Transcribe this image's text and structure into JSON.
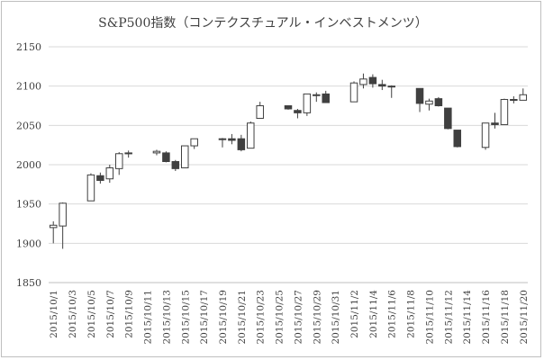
{
  "chart_data": {
    "type": "candlestick",
    "title": "S&P500指数（コンテクスチュアル・インベストメンツ）",
    "ylim": [
      1850,
      2150
    ],
    "yticks": [
      1850,
      1900,
      1950,
      2000,
      2050,
      2100,
      2150
    ],
    "grid": true,
    "legend": "none",
    "colors": {
      "up": "#ffffff",
      "down": "#404040",
      "line": "#404040",
      "grid": "#d9d9d9"
    },
    "categories": [
      "2015/10/1",
      "2015/10/2",
      "2015/10/3",
      "2015/10/4",
      "2015/10/5",
      "2015/10/6",
      "2015/10/7",
      "2015/10/8",
      "2015/10/9",
      "2015/10/10",
      "2015/10/11",
      "2015/10/12",
      "2015/10/13",
      "2015/10/14",
      "2015/10/15",
      "2015/10/16",
      "2015/10/17",
      "2015/10/18",
      "2015/10/19",
      "2015/10/20",
      "2015/10/21",
      "2015/10/22",
      "2015/10/23",
      "2015/10/24",
      "2015/10/25",
      "2015/10/26",
      "2015/10/27",
      "2015/10/28",
      "2015/10/29",
      "2015/10/30",
      "2015/10/31",
      "2015/11/1",
      "2015/11/2",
      "2015/11/3",
      "2015/11/4",
      "2015/11/5",
      "2015/11/6",
      "2015/11/7",
      "2015/11/8",
      "2015/11/9",
      "2015/11/10",
      "2015/11/11",
      "2015/11/12",
      "2015/11/13",
      "2015/11/14",
      "2015/11/15",
      "2015/11/16",
      "2015/11/17",
      "2015/11/18",
      "2015/11/19",
      "2015/11/20"
    ],
    "x_labels": [
      "2015/10/1",
      "2015/10/3",
      "2015/10/5",
      "2015/10/7",
      "2015/10/9",
      "2015/10/11",
      "2015/10/13",
      "2015/10/15",
      "2015/10/17",
      "2015/10/19",
      "2015/10/21",
      "2015/10/23",
      "2015/10/25",
      "2015/10/27",
      "2015/10/29",
      "2015/10/31",
      "2015/11/2",
      "2015/11/4",
      "2015/11/6",
      "2015/11/8",
      "2015/11/10",
      "2015/11/12",
      "2015/11/14",
      "2015/11/16",
      "2015/11/18",
      "2015/11/20"
    ],
    "ohlc": [
      {
        "date": "2015/10/1",
        "open": 1920,
        "high": 1928,
        "low": 1900,
        "close": 1923
      },
      {
        "date": "2015/10/2",
        "open": 1922,
        "high": 1952,
        "low": 1893,
        "close": 1951
      },
      {
        "date": "2015/10/5",
        "open": 1954,
        "high": 1989,
        "low": 1954,
        "close": 1987
      },
      {
        "date": "2015/10/6",
        "open": 1986,
        "high": 1990,
        "low": 1976,
        "close": 1980
      },
      {
        "date": "2015/10/7",
        "open": 1982,
        "high": 2000,
        "low": 1977,
        "close": 1996
      },
      {
        "date": "2015/10/8",
        "open": 1995,
        "high": 2016,
        "low": 1987,
        "close": 2014
      },
      {
        "date": "2015/10/9",
        "open": 2014,
        "high": 2018,
        "low": 2009,
        "close": 2015
      },
      {
        "date": "2015/10/12",
        "open": 2015,
        "high": 2019,
        "low": 2012,
        "close": 2017
      },
      {
        "date": "2015/10/13",
        "open": 2015,
        "high": 2017,
        "low": 2003,
        "close": 2004
      },
      {
        "date": "2015/10/14",
        "open": 2004,
        "high": 2006,
        "low": 1992,
        "close": 1995
      },
      {
        "date": "2015/10/15",
        "open": 1996,
        "high": 2024,
        "low": 1996,
        "close": 2024
      },
      {
        "date": "2015/10/16",
        "open": 2024,
        "high": 2033,
        "low": 2020,
        "close": 2033
      },
      {
        "date": "2015/10/19",
        "open": 2032,
        "high": 2034,
        "low": 2022,
        "close": 2033
      },
      {
        "date": "2015/10/20",
        "open": 2033,
        "high": 2039,
        "low": 2026,
        "close": 2031
      },
      {
        "date": "2015/10/21",
        "open": 2033,
        "high": 2038,
        "low": 2017,
        "close": 2019
      },
      {
        "date": "2015/10/22",
        "open": 2021,
        "high": 2055,
        "low": 2021,
        "close": 2053
      },
      {
        "date": "2015/10/23",
        "open": 2059,
        "high": 2080,
        "low": 2059,
        "close": 2075
      },
      {
        "date": "2015/10/26",
        "open": 2075,
        "high": 2075,
        "low": 2070,
        "close": 2071
      },
      {
        "date": "2015/10/27",
        "open": 2069,
        "high": 2071,
        "low": 2059,
        "close": 2066
      },
      {
        "date": "2015/10/28",
        "open": 2066,
        "high": 2090,
        "low": 2062,
        "close": 2090
      },
      {
        "date": "2015/10/29",
        "open": 2088,
        "high": 2092,
        "low": 2080,
        "close": 2089
      },
      {
        "date": "2015/10/30",
        "open": 2090,
        "high": 2094,
        "low": 2079,
        "close": 2079
      },
      {
        "date": "2015/11/2",
        "open": 2080,
        "high": 2106,
        "low": 2080,
        "close": 2104
      },
      {
        "date": "2015/11/3",
        "open": 2102,
        "high": 2116,
        "low": 2097,
        "close": 2109
      },
      {
        "date": "2015/11/4",
        "open": 2111,
        "high": 2115,
        "low": 2098,
        "close": 2103
      },
      {
        "date": "2015/11/5",
        "open": 2102,
        "high": 2108,
        "low": 2095,
        "close": 2100
      },
      {
        "date": "2015/11/6",
        "open": 2100,
        "high": 2101,
        "low": 2085,
        "close": 2099
      },
      {
        "date": "2015/11/9",
        "open": 2097,
        "high": 2097,
        "low": 2067,
        "close": 2078
      },
      {
        "date": "2015/11/10",
        "open": 2077,
        "high": 2084,
        "low": 2069,
        "close": 2081
      },
      {
        "date": "2015/11/11",
        "open": 2084,
        "high": 2086,
        "low": 2074,
        "close": 2075
      },
      {
        "date": "2015/11/12",
        "open": 2072,
        "high": 2072,
        "low": 2045,
        "close": 2046
      },
      {
        "date": "2015/11/13",
        "open": 2044,
        "high": 2044,
        "low": 2022,
        "close": 2023
      },
      {
        "date": "2015/11/16",
        "open": 2022,
        "high": 2053,
        "low": 2019,
        "close": 2053
      },
      {
        "date": "2015/11/17",
        "open": 2053,
        "high": 2066,
        "low": 2046,
        "close": 2051
      },
      {
        "date": "2015/11/18",
        "open": 2051,
        "high": 2084,
        "low": 2051,
        "close": 2083
      },
      {
        "date": "2015/11/19",
        "open": 2083,
        "high": 2087,
        "low": 2078,
        "close": 2082
      },
      {
        "date": "2015/11/20",
        "open": 2082,
        "high": 2097,
        "low": 2082,
        "close": 2089
      }
    ]
  }
}
